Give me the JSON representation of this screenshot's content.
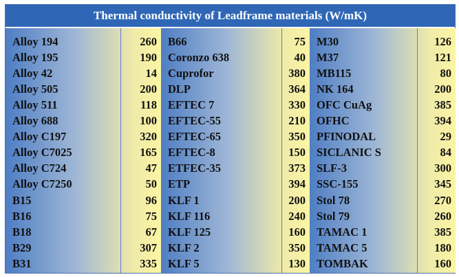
{
  "title": "Thermal conductivity of Leadframe materials (W/mK)",
  "columns": [
    {
      "rows": [
        {
          "name": "Alloy 194",
          "value": "260"
        },
        {
          "name": "Alloy 195",
          "value": "190"
        },
        {
          "name": "Alloy 42",
          "value": "14"
        },
        {
          "name": "Alloy 505",
          "value": "200"
        },
        {
          "name": "Alloy 511",
          "value": "118"
        },
        {
          "name": "Alloy 688",
          "value": "100"
        },
        {
          "name": "Alloy C197",
          "value": "320"
        },
        {
          "name": "Alloy C7025",
          "value": "165"
        },
        {
          "name": "Alloy C724",
          "value": "47"
        },
        {
          "name": "Alloy C7250",
          "value": "50"
        },
        {
          "name": "B15",
          "value": "96"
        },
        {
          "name": "B16",
          "value": "75"
        },
        {
          "name": "B18",
          "value": "67"
        },
        {
          "name": "B29",
          "value": "307"
        },
        {
          "name": "B31",
          "value": "335"
        }
      ]
    },
    {
      "rows": [
        {
          "name": "B66",
          "value": "75"
        },
        {
          "name": "Coronzo 638",
          "value": "40"
        },
        {
          "name": "Cuprofor",
          "value": "380"
        },
        {
          "name": "DLP",
          "value": "364"
        },
        {
          "name": "EFTEC 7",
          "value": "330"
        },
        {
          "name": "EFTEC-55",
          "value": "210"
        },
        {
          "name": "EFTEC-65",
          "value": "350"
        },
        {
          "name": "EFTEC-8",
          "value": "150"
        },
        {
          "name": "ETFEC-35",
          "value": "373"
        },
        {
          "name": "ETP",
          "value": "394"
        },
        {
          "name": "KLF 1",
          "value": "200"
        },
        {
          "name": "KLF 116",
          "value": "240"
        },
        {
          "name": "KLF 125",
          "value": "160"
        },
        {
          "name": "KLF 2",
          "value": "350"
        },
        {
          "name": "KLF 5",
          "value": "130"
        }
      ]
    },
    {
      "rows": [
        {
          "name": "M30",
          "value": "126"
        },
        {
          "name": "M37",
          "value": "121"
        },
        {
          "name": "MB115",
          "value": "80"
        },
        {
          "name": "NK 164",
          "value": "200"
        },
        {
          "name": "OFC CuAg",
          "value": "385"
        },
        {
          "name": "OFHC",
          "value": "394"
        },
        {
          "name": "PFINODAL",
          "value": "29"
        },
        {
          "name": "SICLANIC S",
          "value": "84"
        },
        {
          "name": "SLF-3",
          "value": "300"
        },
        {
          "name": "SSC-155",
          "value": "345"
        },
        {
          "name": "Stol 78",
          "value": "270"
        },
        {
          "name": "Stol 79",
          "value": "260"
        },
        {
          "name": "TAMAC 1",
          "value": "385"
        },
        {
          "name": "TAMAC 5",
          "value": "180"
        },
        {
          "name": "TOMBAK",
          "value": "160"
        }
      ]
    }
  ]
}
